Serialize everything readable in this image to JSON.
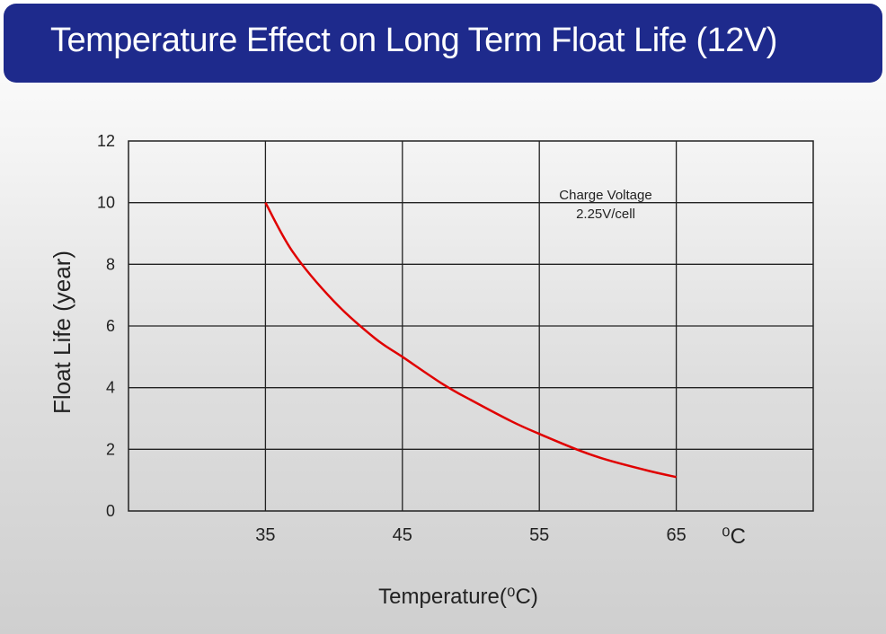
{
  "header": {
    "title": "Temperature Effect on Long Term Float Life (12V)"
  },
  "colors": {
    "title_background": "#1e2a8c",
    "curve": "#e00000",
    "grid": "#222222"
  },
  "chart_data": {
    "type": "line",
    "title": "Temperature Effect on Long Term Float Life (12V)",
    "xlabel": "Temperature(⁰C)",
    "ylabel": "Float Life (year)",
    "x_unit_label": "⁰C",
    "x_ticks": [
      "35",
      "45",
      "55",
      "65"
    ],
    "y_ticks": [
      "0",
      "2",
      "4",
      "6",
      "8",
      "10",
      "12"
    ],
    "xlim": [
      25,
      75
    ],
    "ylim": [
      0,
      12
    ],
    "grid": true,
    "annotation": [
      "Charge Voltage",
      "2.25V/cell"
    ],
    "series": [
      {
        "color": "#e00000",
        "x": [
          35,
          37,
          40,
          43,
          45,
          48,
          50,
          53,
          55,
          58,
          60,
          63,
          65
        ],
        "y": [
          10.0,
          8.4,
          6.8,
          5.6,
          5.0,
          4.1,
          3.6,
          2.9,
          2.5,
          1.95,
          1.65,
          1.3,
          1.1
        ]
      }
    ]
  }
}
